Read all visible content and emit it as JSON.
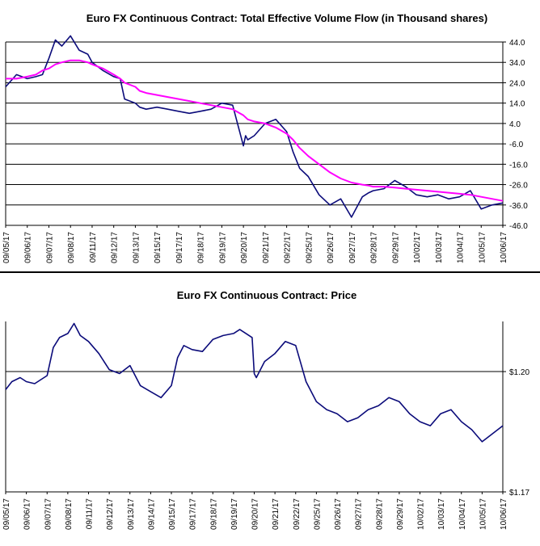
{
  "colors": {
    "price_line": "#0b0b7a",
    "volume_line": "#0b0b7a",
    "moving_average": "#ff00ff",
    "grid": "#000000",
    "frame": "#000000",
    "background": "#ffffff"
  },
  "chart_data": [
    {
      "type": "line",
      "title": "Euro FX Continuous Contract: Total Effective Volume Flow (in Thousand shares)",
      "xlabel": "",
      "ylabel": "",
      "y_axis_side": "right",
      "grid": "horizontal",
      "ylim": [
        -46,
        44
      ],
      "yticks": [
        44.0,
        34.0,
        24.0,
        14.0,
        4.0,
        -6.0,
        -16.0,
        -26.0,
        -36.0,
        -46.0
      ],
      "ytick_labels": [
        "44.0",
        "34.0",
        "24.0",
        "14.0",
        "4.0",
        "-6.0",
        "-16.0",
        "-26.0",
        "-36.0",
        "-46.0"
      ],
      "categories": [
        "09/05/17",
        "09/06/17",
        "09/07/17",
        "09/08/17",
        "09/11/17",
        "09/12/17",
        "09/13/17",
        "09/15/17",
        "09/17/17",
        "09/18/17",
        "09/19/17",
        "09/20/17",
        "09/21/17",
        "09/22/17",
        "09/25/17",
        "09/26/17",
        "09/27/17",
        "09/28/17",
        "09/29/17",
        "10/02/17",
        "10/03/17",
        "10/04/17",
        "10/05/17",
        "10/06/17"
      ],
      "x": [
        0,
        0.5,
        1,
        1.4,
        1.7,
        2,
        2.3,
        2.6,
        3,
        3.4,
        3.8,
        4,
        4.5,
        5,
        5.3,
        5.5,
        6,
        6.2,
        6.5,
        7,
        7.5,
        8,
        8.5,
        9,
        9.5,
        10,
        10.5,
        11,
        11.1,
        11.2,
        11.5,
        12,
        12.5,
        13,
        13.3,
        13.6,
        14,
        14.5,
        15,
        15.5,
        16,
        16.5,
        16.8,
        17,
        17.5,
        18,
        18.5,
        19,
        19.5,
        20,
        20.5,
        21,
        21.5,
        22,
        22.5,
        23
      ],
      "series": [
        {
          "name": "",
          "values": [
            22,
            28,
            26,
            27,
            28,
            36,
            45,
            42,
            47,
            40,
            38,
            34,
            30,
            27,
            26,
            16,
            14,
            12,
            11,
            12,
            11,
            10,
            9,
            10,
            11,
            14,
            13,
            -7,
            -2,
            -4,
            -2,
            4,
            6,
            0,
            -10,
            -18,
            -22,
            -31,
            -36,
            -33,
            -42,
            -32,
            -30,
            -29,
            -28,
            -24,
            -27,
            -31,
            -32,
            -31,
            -33,
            -32,
            -29,
            -38,
            -36,
            -35
          ]
        },
        {
          "name": "",
          "values": [
            26,
            26,
            27,
            28,
            30,
            31,
            33,
            34,
            35,
            35,
            34,
            33,
            31,
            28,
            26,
            24,
            22,
            20,
            19,
            18,
            17,
            16,
            15,
            14,
            13,
            12,
            11,
            8,
            7,
            6,
            5,
            4,
            2,
            -1,
            -4,
            -8,
            -12,
            -16,
            -20,
            -23,
            -25,
            -26,
            -26.5,
            -27,
            -27,
            -27.5,
            -28,
            -28.5,
            -29,
            -29.5,
            -30,
            -30.5,
            -31,
            -32,
            -33,
            -34
          ]
        }
      ]
    },
    {
      "type": "line",
      "title": "Euro FX Continuous Contract: Price",
      "xlabel": "",
      "ylabel": "",
      "y_axis_side": "right",
      "grid": "horizontal",
      "ylim": [
        1.17,
        1.2125
      ],
      "yticks": [
        1.2,
        1.17
      ],
      "ytick_labels": [
        "$1.20",
        "$1.17"
      ],
      "categories": [
        "09/05/17",
        "09/06/17",
        "09/07/17",
        "09/08/17",
        "09/11/17",
        "09/12/17",
        "09/13/17",
        "09/14/17",
        "09/15/17",
        "09/17/17",
        "09/18/17",
        "09/19/17",
        "09/20/17",
        "09/21/17",
        "09/22/17",
        "09/25/17",
        "09/26/17",
        "09/27/17",
        "09/28/17",
        "09/29/17",
        "10/02/17",
        "10/03/17",
        "10/04/17",
        "10/05/17",
        "10/06/17"
      ],
      "x": [
        0,
        0.3,
        0.7,
        1,
        1.4,
        2,
        2.3,
        2.6,
        3,
        3.3,
        3.6,
        4,
        4.5,
        5,
        5.5,
        6,
        6.5,
        7,
        7.5,
        8,
        8.3,
        8.6,
        9,
        9.5,
        10,
        10.5,
        11,
        11.3,
        11.6,
        11.9,
        12,
        12.1,
        12.5,
        13,
        13.5,
        14,
        14.5,
        15,
        15.5,
        16,
        16.5,
        17,
        17.5,
        18,
        18.5,
        19,
        19.5,
        20,
        20.5,
        21,
        21.5,
        22,
        22.5,
        23,
        23.5,
        24
      ],
      "series": [
        {
          "name": "",
          "values": [
            1.1955,
            1.1975,
            1.1985,
            1.1975,
            1.197,
            1.199,
            1.206,
            1.2085,
            1.2095,
            1.212,
            1.209,
            1.2075,
            1.2045,
            1.2005,
            1.1995,
            1.2015,
            1.1965,
            1.195,
            1.1935,
            1.1965,
            1.2035,
            1.2065,
            1.2055,
            1.205,
            1.208,
            1.209,
            1.2095,
            1.2105,
            1.2095,
            1.2085,
            1.1995,
            1.1985,
            1.2025,
            1.2045,
            1.2075,
            1.2065,
            1.1975,
            1.1925,
            1.1905,
            1.1895,
            1.1875,
            1.1885,
            1.1905,
            1.1915,
            1.1935,
            1.1925,
            1.1895,
            1.1875,
            1.1865,
            1.1895,
            1.1905,
            1.1875,
            1.1855,
            1.1825,
            1.1845,
            1.1865
          ]
        }
      ]
    }
  ]
}
